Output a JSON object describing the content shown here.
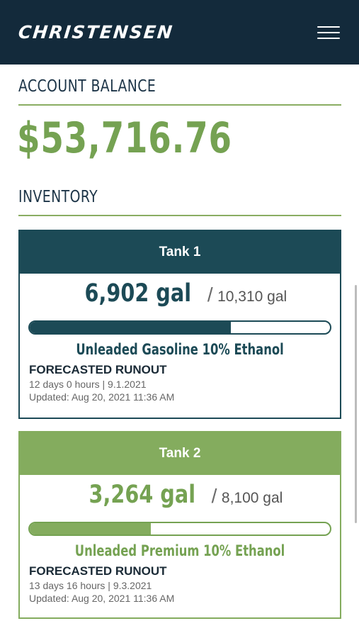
{
  "header": {
    "brand": "Christensen",
    "menu_icon": "hamburger-menu-icon"
  },
  "account": {
    "title": "ACCOUNT BALANCE",
    "balance": "$53,716.76"
  },
  "inventory": {
    "title": "INVENTORY",
    "tanks": [
      {
        "name": "Tank 1",
        "current": "6,902 gal",
        "separator": "/",
        "capacity": "10,310 gal",
        "fill_fraction": 0.67,
        "product": "Unleaded Gasoline 10% Ethanol",
        "runout_title": "FORECASTED RUNOUT",
        "runout_detail": "12 days 0 hours | 9.1.2021",
        "updated": "Updated: Aug 20, 2021 11:36 AM",
        "color": "#1c4a56"
      },
      {
        "name": "Tank 2",
        "current": "3,264 gal",
        "separator": "/",
        "capacity": "8,100 gal",
        "fill_fraction": 0.403,
        "product": "Unleaded Premium 10% Ethanol",
        "runout_title": "FORECASTED RUNOUT",
        "runout_detail": "13 days 16 hours | 9.3.2021",
        "updated": "Updated: Aug 20, 2021 11:36 AM",
        "color": "#84ac5e"
      }
    ]
  },
  "colors": {
    "header_bg": "#132a3b",
    "accent_green": "#75a252",
    "accent_teal": "#1c4a56"
  }
}
